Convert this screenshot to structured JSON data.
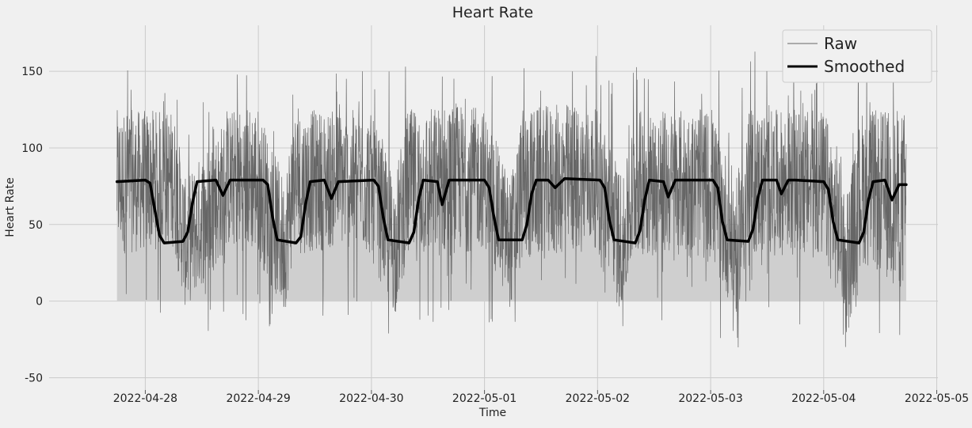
{
  "chart_data": {
    "type": "line",
    "title": "Heart Rate",
    "xlabel": "Time",
    "ylabel": "Heart Rate",
    "x_ticks": [
      "2022-04-28",
      "2022-04-29",
      "2022-04-30",
      "2022-05-01",
      "2022-05-02",
      "2022-05-03",
      "2022-05-04",
      "2022-05-05"
    ],
    "y_ticks": [
      -50,
      0,
      50,
      100,
      150
    ],
    "xlim": [
      "2022-04-27 03:35",
      "2022-05-05 00:15"
    ],
    "ylim": [
      -58,
      180
    ],
    "grid": true,
    "legend_position": "top-right",
    "x_start": "2022-04-27 18:00",
    "x_end": "2022-05-04 17:30",
    "series": [
      {
        "name": "Raw",
        "color": "#666666",
        "style": "thin noisy line with light fill to zero",
        "fill_color": "#cfcfcf",
        "x": [
          "2022-04-27 18:00",
          "2022-04-28 06:00",
          "2022-04-28 08:30",
          "2022-04-28 18:00",
          "2022-04-28 23:40",
          "2022-04-29 05:30",
          "2022-04-29 07:30",
          "2022-04-29 18:00",
          "2022-04-29 23:30",
          "2022-04-30 05:00",
          "2022-04-30 07:30",
          "2022-04-30 18:00",
          "2022-05-01 00:00",
          "2022-05-01 05:30",
          "2022-05-01 08:00",
          "2022-05-01 18:00",
          "2022-05-02 00:00",
          "2022-05-02 05:30",
          "2022-05-02 08:00",
          "2022-05-02 18:00",
          "2022-05-03 00:00",
          "2022-05-03 05:30",
          "2022-05-03 08:00",
          "2022-05-03 18:00",
          "2022-05-04 00:00",
          "2022-05-04 05:30",
          "2022-05-04 08:00",
          "2022-05-04 17:30"
        ],
        "band_low": [
          30,
          35,
          -5,
          35,
          30,
          -10,
          30,
          35,
          30,
          -10,
          25,
          30,
          35,
          -5,
          25,
          30,
          35,
          -5,
          30,
          30,
          25,
          -10,
          30,
          30,
          25,
          -15,
          25,
          5
        ],
        "band_high": [
          125,
          125,
          80,
          125,
          130,
          80,
          125,
          125,
          125,
          80,
          125,
          130,
          125,
          80,
          125,
          130,
          125,
          80,
          125,
          125,
          125,
          80,
          125,
          125,
          125,
          80,
          125,
          125
        ],
        "spike_max": 165,
        "spike_min": -48
      },
      {
        "name": "Smoothed",
        "color": "#000000",
        "x": [
          "2022-04-27 18:00",
          "2022-04-28 00:00",
          "2022-04-28 01:00",
          "2022-04-28 02:00",
          "2022-04-28 03:00",
          "2022-04-28 04:00",
          "2022-04-28 08:00",
          "2022-04-28 09:00",
          "2022-04-28 10:00",
          "2022-04-28 11:00",
          "2022-04-28 15:00",
          "2022-04-28 16:30",
          "2022-04-28 18:00",
          "2022-04-29 01:00",
          "2022-04-29 02:00",
          "2022-04-29 03:00",
          "2022-04-29 04:00",
          "2022-04-29 08:00",
          "2022-04-29 09:00",
          "2022-04-29 10:00",
          "2022-04-29 11:00",
          "2022-04-29 14:00",
          "2022-04-29 15:30",
          "2022-04-29 17:00",
          "2022-04-30 00:30",
          "2022-04-30 01:30",
          "2022-04-30 02:30",
          "2022-04-30 03:30",
          "2022-04-30 08:00",
          "2022-04-30 09:00",
          "2022-04-30 10:00",
          "2022-04-30 11:00",
          "2022-04-30 14:00",
          "2022-04-30 15:00",
          "2022-04-30 16:30",
          "2022-04-30 18:00",
          "2022-05-01 00:00",
          "2022-05-01 01:00",
          "2022-05-01 02:00",
          "2022-05-01 03:00",
          "2022-05-01 08:00",
          "2022-05-01 09:00",
          "2022-05-01 10:00",
          "2022-05-01 11:00",
          "2022-05-01 13:30",
          "2022-05-01 15:00",
          "2022-05-01 17:00",
          "2022-05-02 00:30",
          "2022-05-02 01:30",
          "2022-05-02 02:30",
          "2022-05-02 03:30",
          "2022-05-02 08:00",
          "2022-05-02 09:00",
          "2022-05-02 10:00",
          "2022-05-02 11:00",
          "2022-05-02 14:00",
          "2022-05-02 15:00",
          "2022-05-02 16:30",
          "2022-05-02 18:00",
          "2022-05-03 00:30",
          "2022-05-03 01:30",
          "2022-05-03 02:30",
          "2022-05-03 03:30",
          "2022-05-03 08:00",
          "2022-05-03 09:00",
          "2022-05-03 10:00",
          "2022-05-03 11:00",
          "2022-05-03 14:00",
          "2022-05-03 15:00",
          "2022-05-03 16:30",
          "2022-05-03 18:00",
          "2022-05-04 00:00",
          "2022-05-04 01:00",
          "2022-05-04 02:00",
          "2022-05-04 03:00",
          "2022-05-04 07:30",
          "2022-05-04 08:30",
          "2022-05-04 09:30",
          "2022-05-04 10:30",
          "2022-05-04 13:00",
          "2022-05-04 14:30",
          "2022-05-04 16:00",
          "2022-05-04 17:30"
        ],
        "y": [
          78,
          79,
          77,
          60,
          43,
          38,
          39,
          45,
          64,
          78,
          79,
          69,
          79,
          79,
          76,
          55,
          40,
          38,
          42,
          63,
          78,
          79,
          67,
          78,
          79,
          75,
          55,
          40,
          38,
          45,
          66,
          79,
          78,
          63,
          79,
          79,
          79,
          74,
          55,
          40,
          40,
          50,
          70,
          79,
          79,
          74,
          80,
          79,
          74,
          53,
          40,
          38,
          46,
          66,
          79,
          78,
          68,
          79,
          79,
          79,
          74,
          52,
          40,
          39,
          47,
          67,
          79,
          79,
          70,
          79,
          79,
          78,
          73,
          52,
          40,
          38,
          45,
          66,
          78,
          79,
          66,
          76,
          76
        ]
      }
    ]
  }
}
